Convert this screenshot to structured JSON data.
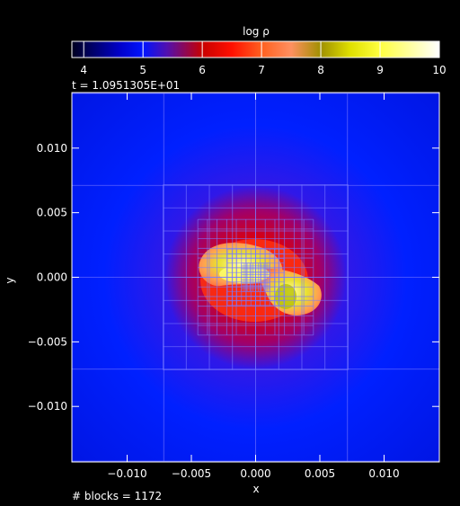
{
  "chart_data": {
    "type": "heatmap",
    "title": "log ρ",
    "time_label": "t = 1.0951305E+01",
    "blocks_label": "# blocks = 1172",
    "xlabel": "x",
    "ylabel": "y",
    "xlim": [
      -0.0143,
      0.0143
    ],
    "ylim": [
      -0.0143,
      0.0143
    ],
    "x_ticks": [
      -0.01,
      -0.005,
      0.0,
      0.005,
      0.01
    ],
    "x_tick_labels": [
      "−0.010",
      "−0.005",
      "0.000",
      "0.005",
      "0.010"
    ],
    "y_ticks": [
      0.01,
      0.005,
      0.0,
      -0.005,
      -0.01
    ],
    "y_tick_labels": [
      "0.010",
      "0.005",
      "0.000",
      "−0.005",
      "−0.010"
    ],
    "colorbar": {
      "range": [
        3.8,
        10
      ],
      "ticks": [
        4,
        5,
        6,
        7,
        8,
        9,
        10
      ],
      "tick_labels": [
        "4",
        "5",
        "6",
        "7",
        "8",
        "9",
        "10"
      ],
      "stops": [
        {
          "value": 3.8,
          "color": "#00001e"
        },
        {
          "value": 4.6,
          "color": "#0000c8"
        },
        {
          "value": 5.0,
          "color": "#0014ff"
        },
        {
          "value": 5.4,
          "color": "#5010b0"
        },
        {
          "value": 6.0,
          "color": "#c80000"
        },
        {
          "value": 6.5,
          "color": "#ff1000"
        },
        {
          "value": 7.0,
          "color": "#ff6020"
        },
        {
          "value": 7.5,
          "color": "#ff9060"
        },
        {
          "value": 8.0,
          "color": "#a09000"
        },
        {
          "value": 8.5,
          "color": "#e0e000"
        },
        {
          "value": 9.0,
          "color": "#ffff40"
        },
        {
          "value": 10.0,
          "color": "#ffffff"
        }
      ]
    },
    "mesh_color": "#7a7aff",
    "mesh_refinement": "nested AMR blocks, finest near origin"
  }
}
